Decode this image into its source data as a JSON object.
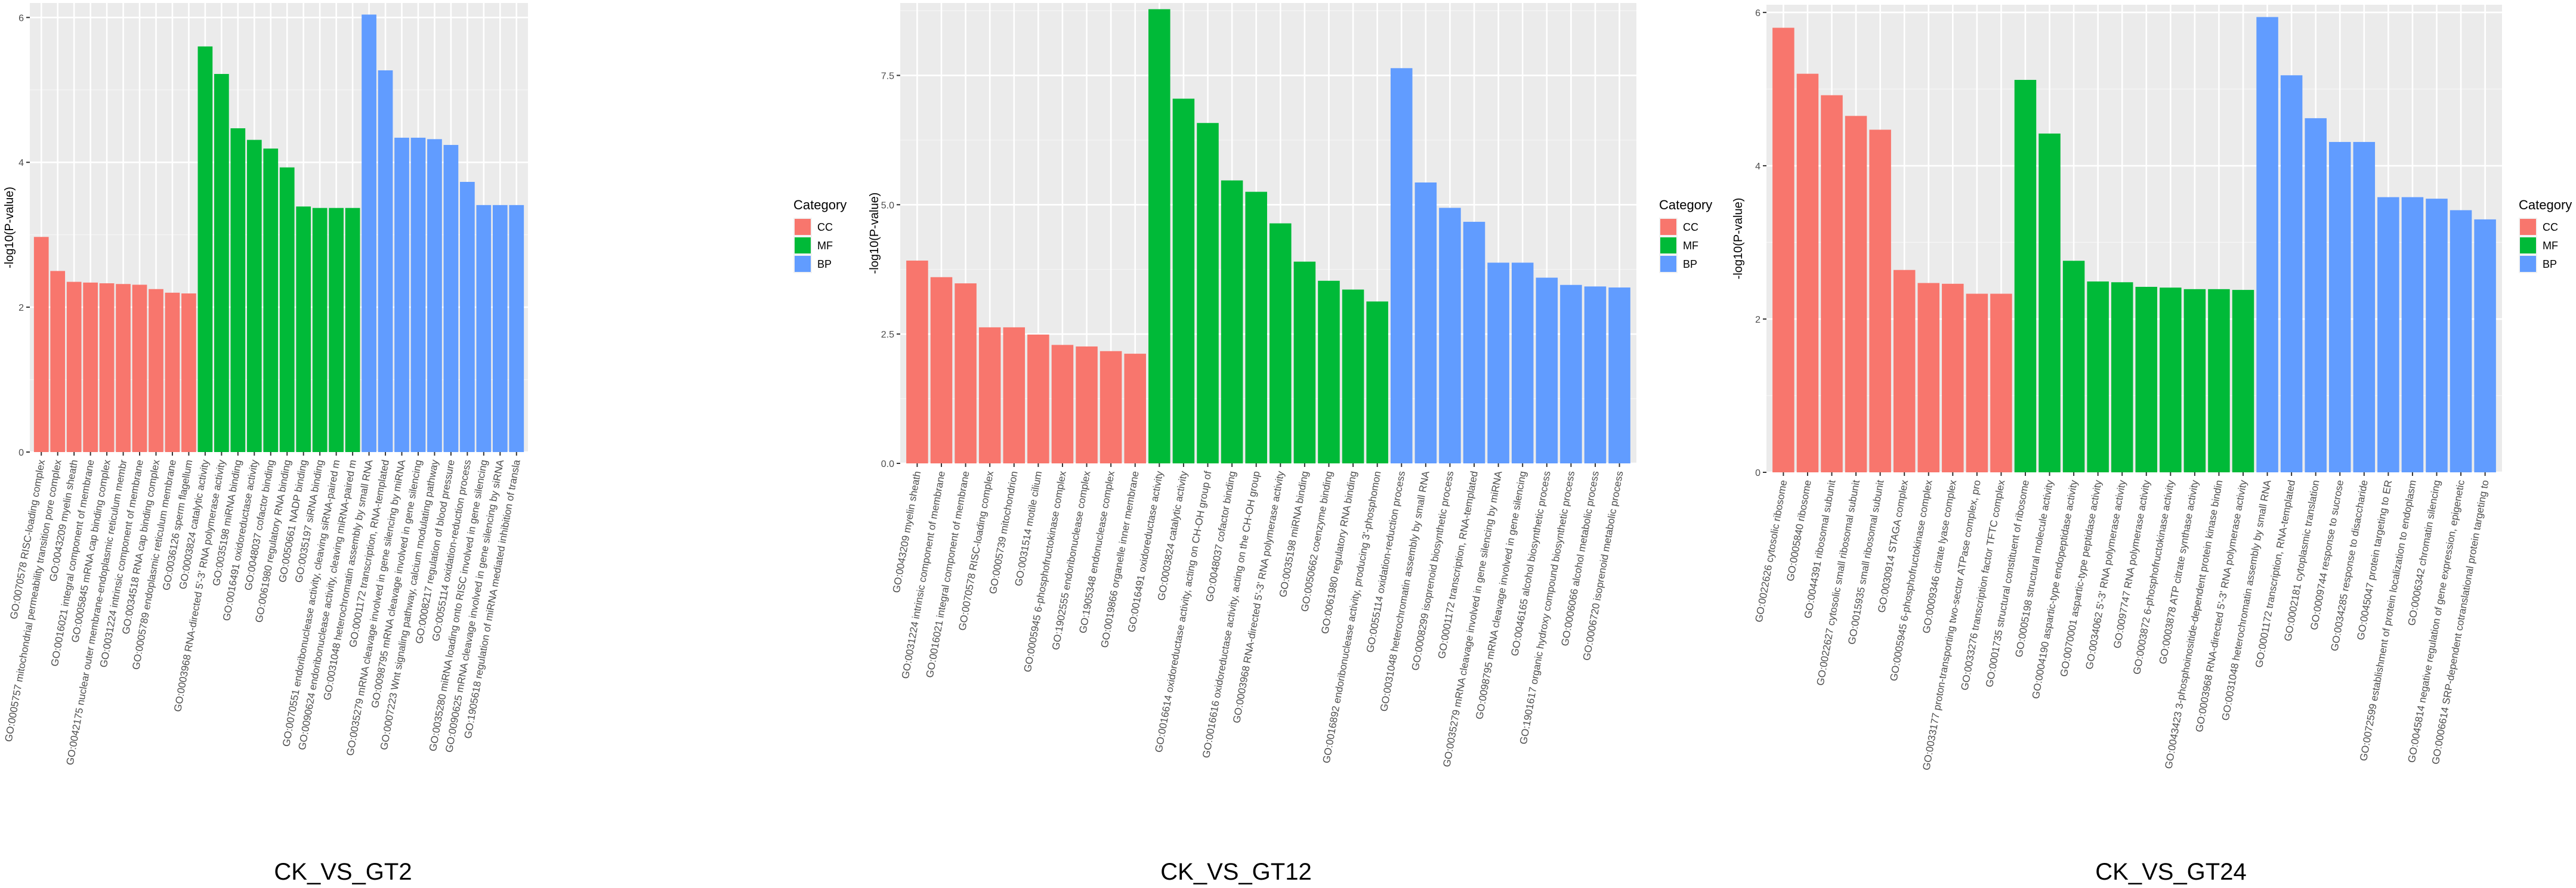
{
  "legend": {
    "title": "Category",
    "entries": [
      {
        "key": "CC",
        "label": "CC",
        "color": "#F8766D"
      },
      {
        "key": "MF",
        "label": "MF",
        "color": "#00BA38"
      },
      {
        "key": "BP",
        "label": "BP",
        "color": "#619CFF"
      }
    ]
  },
  "chart_data": [
    {
      "type": "bar",
      "title": "CK_VS_GT2",
      "xlabel": "",
      "ylabel": "-log10(P-value)",
      "ylim": [
        0,
        6.2
      ],
      "yticks": [
        0,
        2,
        4,
        6
      ],
      "categories": [
        "GO:0070578 RISC-loading complex",
        "GO:0005757 mitochondrial permeability transition pore complex",
        "GO:0043209 myelin sheath",
        "GO:0016021 integral component of membrane",
        "GO:0005845 mRNA cap binding complex",
        "GO:0042175 nuclear outer membrane-endoplasmic reticulum membr",
        "GO:0031224 intrinsic component of membrane",
        "GO:0034518 RNA cap binding complex",
        "GO:0005789 endoplasmic reticulum membrane",
        "GO:0036126 sperm flagellum",
        "GO:0003824 catalytic activity",
        "GO:0003968 RNA-directed 5'-3' RNA polymerase activity",
        "GO:0035198 miRNA binding",
        "GO:0016491 oxidoreductase activity",
        "GO:0048037 cofactor binding",
        "GO:0061980 regulatory RNA binding",
        "GO:0050661 NADP binding",
        "GO:0035197 siRNA binding",
        "GO:0070551 endoribonuclease activity, cleaving siRNA-paired m",
        "GO:0090624 endoribonuclease activity, cleaving miRNA-paired m",
        "GO:0031048 heterochromatin assembly by small RNA",
        "GO:0001172 transcription, RNA-templated",
        "GO:0035279 mRNA cleavage involved in gene silencing by miRNA",
        "GO:0098795 mRNA cleavage involved in gene silencing",
        "GO:0007223 Wnt signaling pathway, calcium modulating pathway",
        "GO:0008217 regulation of blood pressure",
        "GO:0055114 oxidation-reduction process",
        "GO:0035280 miRNA loading onto RISC involved in gene silencing",
        "GO:0090625 mRNA cleavage involved in gene silencing by siRNA",
        "GO:1905618 regulation of miRNA mediated inhibition of transla"
      ],
      "groups": [
        "CC",
        "CC",
        "CC",
        "CC",
        "CC",
        "CC",
        "CC",
        "CC",
        "CC",
        "CC",
        "MF",
        "MF",
        "MF",
        "MF",
        "MF",
        "MF",
        "MF",
        "MF",
        "MF",
        "MF",
        "BP",
        "BP",
        "BP",
        "BP",
        "BP",
        "BP",
        "BP",
        "BP",
        "BP",
        "BP"
      ],
      "values": [
        2.97,
        2.5,
        2.35,
        2.34,
        2.33,
        2.32,
        2.31,
        2.25,
        2.2,
        2.19,
        5.6,
        5.22,
        4.47,
        4.31,
        4.19,
        3.93,
        3.39,
        3.37,
        3.37,
        3.37,
        6.04,
        5.27,
        4.34,
        4.34,
        4.32,
        4.24,
        3.73,
        3.41,
        3.41,
        3.41
      ]
    },
    {
      "type": "bar",
      "title": "CK_VS_GT12",
      "xlabel": "",
      "ylabel": "-log10(P-value)",
      "ylim": [
        0,
        8.9
      ],
      "yticks": [
        0.0,
        2.5,
        5.0,
        7.5
      ],
      "categories": [
        "GO:0043209 myelin sheath",
        "GO:0031224 intrinsic component of membrane",
        "GO:0016021 integral component of membrane",
        "GO:0070578 RISC-loading complex",
        "GO:0005739 mitochondrion",
        "GO:0031514 motile cilium",
        "GO:0005945 6-phosphofructokinase complex",
        "GO:1902555 endoribonuclease complex",
        "GO:1905348 endonuclease complex",
        "GO:0019866 organelle inner membrane",
        "GO:0016491 oxidoreductase activity",
        "GO:0003824 catalytic activity",
        "GO:0016614 oxidoreductase activity, acting on CH-OH group of",
        "GO:0048037 cofactor binding",
        "GO:0016616 oxidoreductase activity, acting on the CH-OH group",
        "GO:0003968 RNA-directed 5'-3' RNA polymerase activity",
        "GO:0035198 miRNA binding",
        "GO:0050662 coenzyme binding",
        "GO:0061980 regulatory RNA binding",
        "GO:0016892 endoribonuclease activity, producing 3'-phosphomon",
        "GO:0055114 oxidation-reduction process",
        "GO:0031048 heterochromatin assembly by small RNA",
        "GO:0008299 isoprenoid biosynthetic process",
        "GO:0001172 transcription, RNA-templated",
        "GO:0035279 mRNA cleavage involved in gene silencing by miRNA",
        "GO:0098795 mRNA cleavage involved in gene silencing",
        "GO:0046165 alcohol biosynthetic process",
        "GO:1901617 organic hydroxy compound biosynthetic process",
        "GO:0006066 alcohol metabolic process",
        "GO:0006720 isoprenoid metabolic process"
      ],
      "groups": [
        "CC",
        "CC",
        "CC",
        "CC",
        "CC",
        "CC",
        "CC",
        "CC",
        "CC",
        "CC",
        "MF",
        "MF",
        "MF",
        "MF",
        "MF",
        "MF",
        "MF",
        "MF",
        "MF",
        "MF",
        "BP",
        "BP",
        "BP",
        "BP",
        "BP",
        "BP",
        "BP",
        "BP",
        "BP",
        "BP"
      ],
      "values": [
        3.92,
        3.6,
        3.48,
        2.63,
        2.63,
        2.49,
        2.29,
        2.26,
        2.17,
        2.12,
        8.78,
        7.05,
        6.58,
        5.47,
        5.25,
        4.64,
        3.9,
        3.53,
        3.36,
        3.13,
        7.64,
        5.43,
        4.94,
        4.67,
        3.88,
        3.88,
        3.59,
        3.45,
        3.42,
        3.4
      ]
    },
    {
      "type": "bar",
      "title": "CK_VS_GT24",
      "xlabel": "",
      "ylabel": "-log10(P-value)",
      "ylim": [
        0,
        6.1
      ],
      "yticks": [
        0,
        2,
        4,
        6
      ],
      "categories": [
        "GO:0022626 cytosolic ribosome",
        "GO:0005840 ribosome",
        "GO:0044391 ribosomal subunit",
        "GO:0022627 cytosolic small ribosomal subunit",
        "GO:0015935 small ribosomal subunit",
        "GO:0030914 STAGA complex",
        "GO:0005945 6-phosphofructokinase complex",
        "GO:0009346 citrate lyase complex",
        "GO:0033177 proton-transporting two-sector ATPase complex, pro",
        "GO:0033276 transcription factor TFTC complex",
        "GO:0001735 structural constituent of ribosome",
        "GO:0005198 structural molecule activity",
        "GO:0004190 aspartic-type endopeptidase activity",
        "GO:0070001 aspartic-type peptidase activity",
        "GO:0034062 5'-3' RNA polymerase activity",
        "GO:0097747 RNA polymerase activity",
        "GO:0003872 6-phosphofructokinase activity",
        "GO:0003878 ATP citrate synthase activity",
        "GO:0043423 3-phosphoinositide-dependent protein kinase bindin",
        "GO:0003968 RNA-directed 5'-3' RNA polymerase activity",
        "GO:0031048 heterochromatin assembly by small RNA",
        "GO:0001172 transcription, RNA-templated",
        "GO:0002181 cytoplasmic translation",
        "GO:0009744 response to sucrose",
        "GO:0034285 response to disaccharide",
        "GO:0045047 protein targeting to ER",
        "GO:0072599 establishment of protein localization to endoplasm",
        "GO:0006342 chromatin silencing",
        "GO:0045814 negative regulation of gene expression, epigenetic",
        "GO:0006614 SRP-dependent cotranslational protein targeting to"
      ],
      "groups": [
        "CC",
        "CC",
        "CC",
        "CC",
        "CC",
        "CC",
        "CC",
        "CC",
        "CC",
        "CC",
        "MF",
        "MF",
        "MF",
        "MF",
        "MF",
        "MF",
        "MF",
        "MF",
        "MF",
        "MF",
        "BP",
        "BP",
        "BP",
        "BP",
        "BP",
        "BP",
        "BP",
        "BP",
        "BP",
        "BP"
      ],
      "values": [
        5.8,
        5.2,
        4.92,
        4.65,
        4.47,
        2.64,
        2.47,
        2.46,
        2.33,
        2.33,
        5.12,
        4.42,
        2.76,
        2.49,
        2.48,
        2.42,
        2.41,
        2.39,
        2.39,
        2.38,
        5.94,
        5.18,
        4.62,
        4.31,
        4.31,
        3.59,
        3.59,
        3.57,
        3.42,
        3.3
      ]
    }
  ]
}
